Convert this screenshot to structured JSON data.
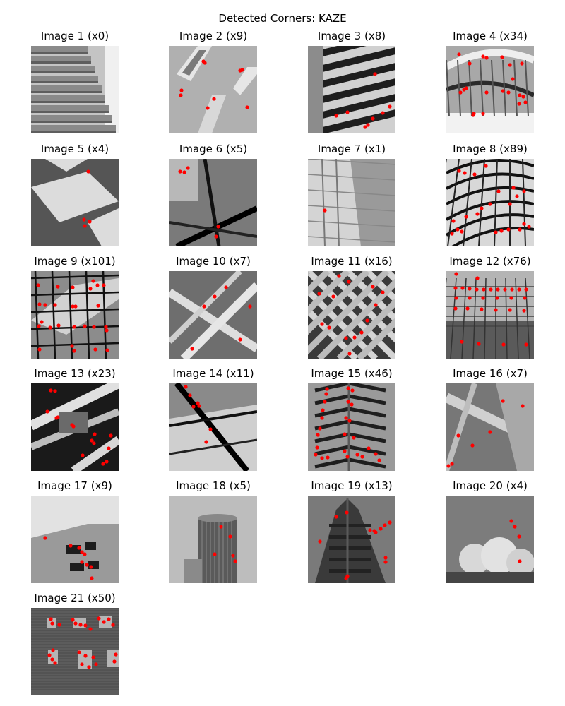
{
  "figure_title": "Detected Corners: KAZE",
  "marker_color": "#ff0000",
  "images": [
    {
      "label": "Image 1 (x0)",
      "scene": "stairs"
    },
    {
      "label": "Image 2 (x9)",
      "scene": "angled-windows"
    },
    {
      "label": "Image 3 (x8)",
      "scene": "facade-stripes"
    },
    {
      "label": "Image 4 (x34)",
      "scene": "curved-roof"
    },
    {
      "label": "Image 5 (x4)",
      "scene": "checker-pavement"
    },
    {
      "label": "Image 6 (x5)",
      "scene": "glass-panel"
    },
    {
      "label": "Image 7 (x1)",
      "scene": "glass-tower"
    },
    {
      "label": "Image 8 (x89)",
      "scene": "dome-lattice"
    },
    {
      "label": "Image 9 (x101)",
      "scene": "grid-sky"
    },
    {
      "label": "Image 10 (x7)",
      "scene": "diagonal-frame"
    },
    {
      "label": "Image 11 (x16)",
      "scene": "diamond-lattice"
    },
    {
      "label": "Image 12 (x76)",
      "scene": "atrium-grid"
    },
    {
      "label": "Image 13 (x23)",
      "scene": "beams-dark"
    },
    {
      "label": "Image 14 (x11)",
      "scene": "glass-diagonal"
    },
    {
      "label": "Image 15 (x46)",
      "scene": "chevron-tower"
    },
    {
      "label": "Image 16 (x7)",
      "scene": "concrete-beams"
    },
    {
      "label": "Image 17 (x9)",
      "scene": "building-windows"
    },
    {
      "label": "Image 18 (x5)",
      "scene": "round-tower"
    },
    {
      "label": "Image 19 (x13)",
      "scene": "tower-up"
    },
    {
      "label": "Image 20 (x4)",
      "scene": "clouds-sky"
    },
    {
      "label": "Image 21 (x50)",
      "scene": "wall-windows"
    }
  ]
}
